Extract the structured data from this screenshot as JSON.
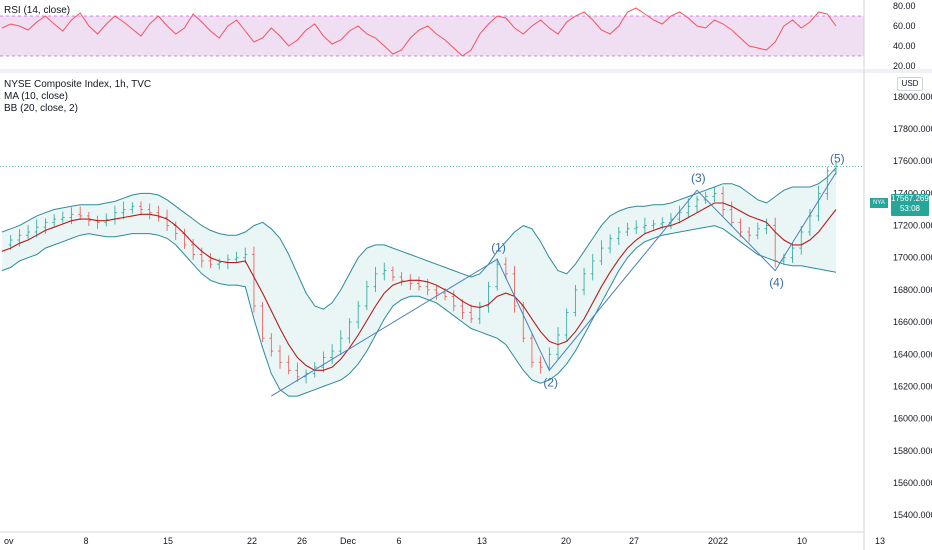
{
  "rsi_panel": {
    "label": "RSI (14, close)"
  },
  "main_panel": {
    "title": "NYSE Composite Index, 1h, TVC",
    "ma_label": "MA (10, close)",
    "bb_label": "BB (20, close, 2)",
    "currency": "USD",
    "last_price": "17567.2692",
    "countdown": "53:08",
    "symbol_tag": "NYA"
  },
  "colors": {
    "rsi_line": "#f7525f",
    "rsi_band": "#e1bee7",
    "bb_line": "#2e8b9a",
    "bb_fill": "#e0f2f1",
    "ma_line": "#b71c1c",
    "candle_up": "#26a69a",
    "candle_down": "#ef5350",
    "wave_line": "#4a7fbf",
    "price_tag": "#26a69a"
  },
  "chart_data": [
    {
      "type": "line",
      "name": "RSI",
      "y_ticks": [
        "80.00",
        "60.00",
        "40.00",
        "20.00"
      ],
      "ylim": [
        20,
        82
      ],
      "band": [
        30,
        70
      ],
      "values": [
        58,
        62,
        60,
        56,
        64,
        70,
        62,
        55,
        66,
        73,
        60,
        52,
        62,
        70,
        64,
        57,
        50,
        62,
        70,
        60,
        52,
        58,
        72,
        64,
        55,
        48,
        60,
        66,
        55,
        44,
        48,
        58,
        50,
        40,
        46,
        56,
        62,
        50,
        42,
        46,
        55,
        60,
        52,
        48,
        40,
        32,
        36,
        48,
        56,
        60,
        52,
        46,
        38,
        30,
        36,
        52,
        62,
        70,
        68,
        58,
        52,
        60,
        66,
        58,
        52,
        64,
        70,
        74,
        66,
        56,
        52,
        60,
        74,
        78,
        72,
        66,
        62,
        70,
        74,
        68,
        60,
        58,
        66,
        62,
        56,
        48,
        40,
        38,
        36,
        44,
        60,
        66,
        58,
        64,
        74,
        72,
        60
      ]
    },
    {
      "type": "line",
      "name": "NYSE Composite Index",
      "y_ticks": [
        "18000.0000",
        "17800.0000",
        "17600.0000",
        "17400.0000",
        "17200.0000",
        "17000.0000",
        "16800.0000",
        "16600.0000",
        "16400.0000",
        "16200.0000",
        "16000.0000",
        "15800.0000",
        "15600.0000",
        "15400.0000"
      ],
      "ylim": [
        15320,
        18080
      ],
      "x_ticks": [
        "ov",
        "8",
        "15",
        "22",
        "26",
        "Dec",
        "6",
        "13",
        "20",
        "27",
        "2022",
        "10",
        "13"
      ],
      "close": [
        17080,
        17110,
        17140,
        17160,
        17190,
        17220,
        17240,
        17250,
        17270,
        17260,
        17230,
        17220,
        17240,
        17280,
        17300,
        17320,
        17300,
        17280,
        17250,
        17200,
        17150,
        17080,
        17020,
        16980,
        16960,
        16970,
        16990,
        17000,
        17020,
        16700,
        16500,
        16420,
        16350,
        16300,
        16260,
        16280,
        16320,
        16380,
        16420,
        16500,
        16600,
        16700,
        16820,
        16900,
        16920,
        16880,
        16860,
        16840,
        16820,
        16800,
        16780,
        16760,
        16700,
        16660,
        16620,
        16700,
        16820,
        16960,
        16900,
        16700,
        16500,
        16350,
        16320,
        16400,
        16520,
        16660,
        16800,
        16900,
        16980,
        17060,
        17120,
        17160,
        17180,
        17190,
        17200,
        17210,
        17220,
        17240,
        17280,
        17320,
        17360,
        17380,
        17400,
        17300,
        17220,
        17160,
        17140,
        17180,
        17200,
        16980,
        17000,
        17060,
        17160,
        17260,
        17400,
        17540,
        17567
      ],
      "ma10": [
        17040,
        17060,
        17090,
        17110,
        17140,
        17170,
        17190,
        17210,
        17230,
        17240,
        17240,
        17230,
        17230,
        17240,
        17250,
        17260,
        17270,
        17270,
        17260,
        17240,
        17200,
        17150,
        17090,
        17040,
        17000,
        16980,
        16970,
        16970,
        16980,
        16880,
        16780,
        16670,
        16560,
        16460,
        16380,
        16330,
        16300,
        16300,
        16320,
        16370,
        16440,
        16520,
        16610,
        16700,
        16780,
        16830,
        16850,
        16860,
        16860,
        16850,
        16830,
        16800,
        16770,
        16730,
        16700,
        16690,
        16710,
        16760,
        16780,
        16760,
        16700,
        16620,
        16540,
        16480,
        16460,
        16480,
        16540,
        16620,
        16720,
        16820,
        16910,
        16990,
        17060,
        17110,
        17150,
        17170,
        17190,
        17200,
        17220,
        17250,
        17280,
        17310,
        17340,
        17340,
        17320,
        17290,
        17260,
        17240,
        17220,
        17160,
        17110,
        17080,
        17080,
        17110,
        17160,
        17230,
        17300
      ],
      "bb_upper": [
        17160,
        17180,
        17200,
        17230,
        17260,
        17280,
        17300,
        17310,
        17320,
        17330,
        17330,
        17330,
        17340,
        17350,
        17370,
        17390,
        17400,
        17400,
        17390,
        17360,
        17320,
        17280,
        17240,
        17200,
        17170,
        17150,
        17140,
        17140,
        17160,
        17200,
        17220,
        17180,
        17120,
        17020,
        16900,
        16780,
        16700,
        16680,
        16720,
        16800,
        16900,
        17000,
        17060,
        17080,
        17080,
        17060,
        17040,
        17020,
        17000,
        16980,
        16960,
        16940,
        16920,
        16900,
        16880,
        16900,
        16960,
        17040,
        17100,
        17160,
        17200,
        17180,
        17100,
        17000,
        16920,
        16900,
        16960,
        17040,
        17120,
        17200,
        17260,
        17290,
        17310,
        17320,
        17320,
        17330,
        17330,
        17340,
        17360,
        17380,
        17400,
        17420,
        17440,
        17460,
        17460,
        17440,
        17400,
        17360,
        17340,
        17380,
        17420,
        17440,
        17440,
        17440,
        17460,
        17500,
        17560
      ],
      "bb_lower": [
        16920,
        16940,
        16980,
        17000,
        17020,
        17060,
        17080,
        17100,
        17120,
        17140,
        17150,
        17140,
        17130,
        17130,
        17140,
        17150,
        17150,
        17150,
        17140,
        17120,
        17080,
        17020,
        16960,
        16900,
        16860,
        16840,
        16830,
        16830,
        16820,
        16620,
        16440,
        16280,
        16180,
        16140,
        16140,
        16160,
        16180,
        16200,
        16220,
        16240,
        16280,
        16340,
        16420,
        16520,
        16620,
        16700,
        16740,
        16760,
        16760,
        16740,
        16720,
        16680,
        16640,
        16600,
        16560,
        16540,
        16520,
        16500,
        16460,
        16380,
        16300,
        16240,
        16220,
        16240,
        16280,
        16340,
        16420,
        16520,
        16620,
        16720,
        16820,
        16920,
        17000,
        17060,
        17100,
        17120,
        17140,
        17150,
        17160,
        17170,
        17180,
        17190,
        17200,
        17180,
        17140,
        17100,
        17060,
        17020,
        17000,
        16980,
        16960,
        16950,
        16950,
        16940,
        16930,
        16920,
        16910
      ]
    },
    {
      "type": "annotation",
      "name": "elliott-wave",
      "labels": [
        "(1)",
        "(2)",
        "(3)",
        "(4)",
        "(5)"
      ],
      "points": [
        {
          "i": 31,
          "v": 16140
        },
        {
          "i": 57,
          "v": 16990
        },
        {
          "i": 63,
          "v": 16300
        },
        {
          "i": 80,
          "v": 17420
        },
        {
          "i": 89,
          "v": 16920
        },
        {
          "i": 96,
          "v": 17530
        }
      ]
    }
  ]
}
